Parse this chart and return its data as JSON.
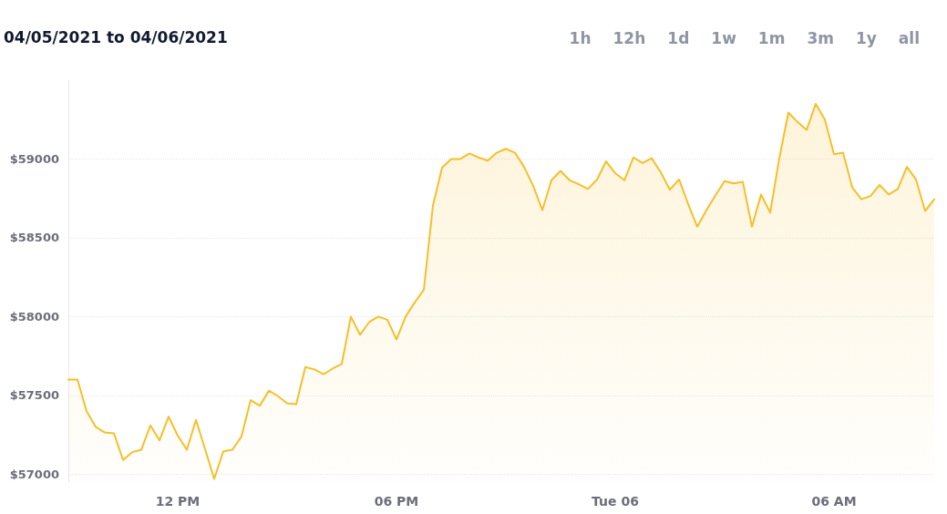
{
  "chart_data": {
    "type": "area",
    "title": "04/05/2021 to 04/06/2021",
    "annotations": [
      "1h",
      "12h",
      "1d",
      "1w",
      "1m",
      "3m",
      "1y",
      "all"
    ],
    "x": [
      "2021-04-05T09:00",
      "2021-04-05T09:15",
      "2021-04-05T09:30",
      "2021-04-05T09:45",
      "2021-04-05T10:00",
      "2021-04-05T10:15",
      "2021-04-05T10:30",
      "2021-04-05T10:45",
      "2021-04-05T11:00",
      "2021-04-05T11:15",
      "2021-04-05T11:30",
      "2021-04-05T11:45",
      "2021-04-05T12:00",
      "2021-04-05T12:15",
      "2021-04-05T12:30",
      "2021-04-05T12:45",
      "2021-04-05T13:00",
      "2021-04-05T13:15",
      "2021-04-05T13:30",
      "2021-04-05T13:45",
      "2021-04-05T14:00",
      "2021-04-05T14:15",
      "2021-04-05T14:30",
      "2021-04-05T14:45",
      "2021-04-05T15:00",
      "2021-04-05T15:15",
      "2021-04-05T15:30",
      "2021-04-05T15:45",
      "2021-04-05T16:00",
      "2021-04-05T16:15",
      "2021-04-05T16:30",
      "2021-04-05T16:45",
      "2021-04-05T17:00",
      "2021-04-05T17:15",
      "2021-04-05T17:30",
      "2021-04-05T17:45",
      "2021-04-05T18:00",
      "2021-04-05T18:15",
      "2021-04-05T18:30",
      "2021-04-05T18:45",
      "2021-04-05T19:00",
      "2021-04-05T19:15",
      "2021-04-05T19:30",
      "2021-04-05T19:45",
      "2021-04-05T20:00",
      "2021-04-05T20:15",
      "2021-04-05T20:30",
      "2021-04-05T20:45",
      "2021-04-05T21:00",
      "2021-04-05T21:15",
      "2021-04-05T21:30",
      "2021-04-05T21:45",
      "2021-04-05T22:00",
      "2021-04-05T22:15",
      "2021-04-05T22:30",
      "2021-04-05T22:45",
      "2021-04-05T23:00",
      "2021-04-05T23:15",
      "2021-04-05T23:30",
      "2021-04-05T23:45",
      "2021-04-06T00:00",
      "2021-04-06T00:15",
      "2021-04-06T00:30",
      "2021-04-06T00:45",
      "2021-04-06T01:00",
      "2021-04-06T01:15",
      "2021-04-06T01:30",
      "2021-04-06T01:45",
      "2021-04-06T02:00",
      "2021-04-06T02:15",
      "2021-04-06T02:30",
      "2021-04-06T02:45",
      "2021-04-06T03:00",
      "2021-04-06T03:15",
      "2021-04-06T03:30",
      "2021-04-06T03:45",
      "2021-04-06T04:00",
      "2021-04-06T04:15",
      "2021-04-06T04:30",
      "2021-04-06T04:45",
      "2021-04-06T05:00",
      "2021-04-06T05:15",
      "2021-04-06T05:30",
      "2021-04-06T05:45",
      "2021-04-06T06:00",
      "2021-04-06T06:15",
      "2021-04-06T06:30",
      "2021-04-06T06:45",
      "2021-04-06T07:00",
      "2021-04-06T07:15",
      "2021-04-06T07:30",
      "2021-04-06T07:45",
      "2021-04-06T08:00",
      "2021-04-06T08:15",
      "2021-04-06T08:30",
      "2021-04-06T08:45"
    ],
    "series": [
      {
        "color": "#f5bf2a",
        "values": [
          57600,
          57600,
          57400,
          57300,
          57265,
          57260,
          57090,
          57140,
          57155,
          57310,
          57215,
          57365,
          57245,
          57155,
          57345,
          57160,
          56970,
          57145,
          57155,
          57240,
          57470,
          57435,
          57530,
          57495,
          57450,
          57445,
          57680,
          57665,
          57635,
          57670,
          57700,
          58000,
          57885,
          57965,
          58000,
          57980,
          57855,
          58000,
          58090,
          58170,
          58705,
          58945,
          59000,
          59000,
          59035,
          59010,
          58990,
          59040,
          59065,
          59040,
          58950,
          58830,
          58675,
          58865,
          58925,
          58865,
          58840,
          58810,
          58870,
          58985,
          58910,
          58865,
          59010,
          58975,
          59005,
          58915,
          58805,
          58870,
          58715,
          58570,
          58675,
          58770,
          58860,
          58845,
          58855,
          58570,
          58775,
          58660,
          59005,
          59295,
          59235,
          59185,
          59350,
          59250,
          59030,
          59040,
          58820,
          58745,
          58765,
          58835,
          58775,
          58810,
          58950,
          58870,
          58670,
          58745
        ]
      }
    ],
    "xlim": [
      "2021-04-05T09:00",
      "2021-04-06T08:45"
    ],
    "xticks": [
      {
        "value": "2021-04-05T12:00",
        "label": "12 PM"
      },
      {
        "value": "2021-04-05T18:00",
        "label": "06 PM"
      },
      {
        "value": "2021-04-06T00:00",
        "label": "Tue 06"
      },
      {
        "value": "2021-04-06T06:00",
        "label": "06 AM"
      }
    ],
    "ylim": [
      56950,
      59500
    ],
    "yticks": [
      {
        "value": 57000,
        "label": "$57000"
      },
      {
        "value": 57500,
        "label": "$57500"
      },
      {
        "value": 58000,
        "label": "$58000"
      },
      {
        "value": 58500,
        "label": "$58500"
      },
      {
        "value": 59000,
        "label": "$59000"
      }
    ],
    "grid": "y",
    "marker": "none",
    "line_style": "solid"
  }
}
